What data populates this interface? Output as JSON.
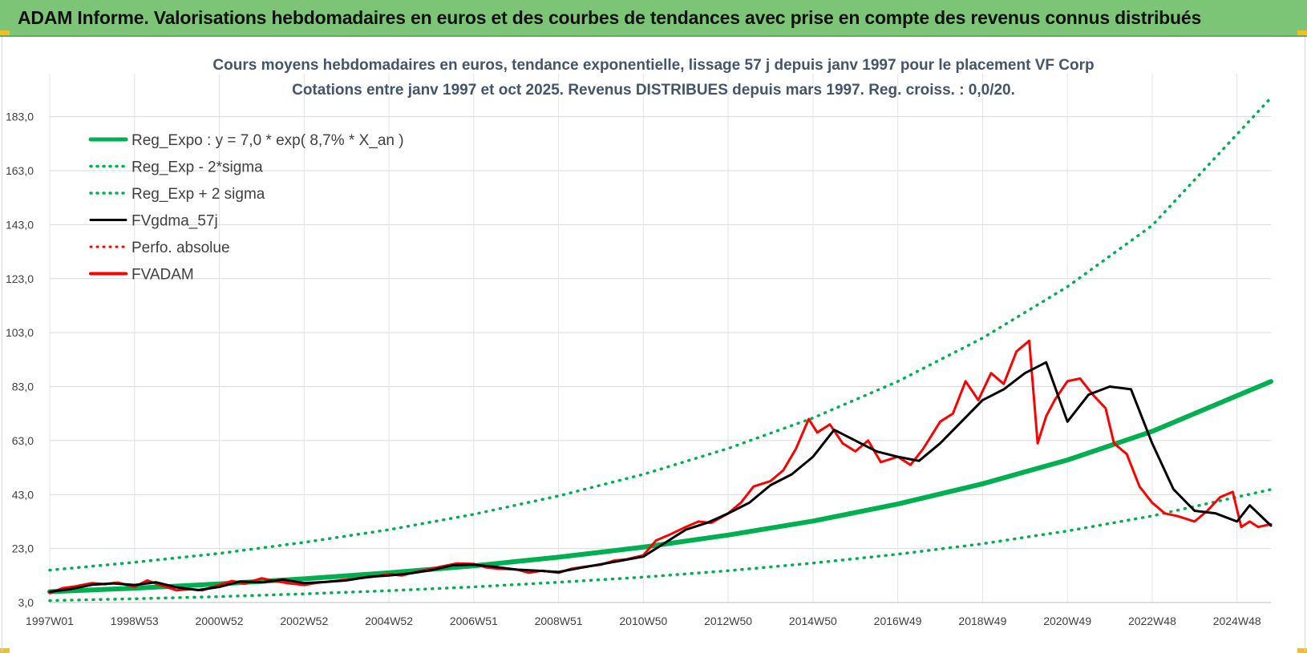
{
  "banner": {
    "title": "ADAM Informe. Valorisations hebdomadaires en euros et des courbes de tendances avec prise en compte des revenus connus distribués",
    "color": "#7cc576"
  },
  "chart_data": {
    "type": "line",
    "title": "Cours moyens hebdomadaires en euros, tendance exponentielle, lissage 57 j depuis janv 1997 pour le placement VF Corp",
    "subtitle": "Cotations entre janv 1997 et oct 2025. Revenus DISTRIBUES depuis mars 1997. Reg. croiss. : 0,0/20.",
    "xlabel": "",
    "ylabel": "",
    "xlim": [
      1997.0,
      2025.8
    ],
    "ylim": [
      3.0,
      193.0
    ],
    "y_ticks": [
      "3,0",
      "23,0",
      "43,0",
      "63,0",
      "83,0",
      "103,0",
      "123,0",
      "143,0",
      "163,0",
      "183,0"
    ],
    "x_ticks": [
      {
        "label": "1997W01",
        "x": 1997.0
      },
      {
        "label": "1998W53",
        "x": 1999.0
      },
      {
        "label": "2000W52",
        "x": 2001.0
      },
      {
        "label": "2002W52",
        "x": 2003.0
      },
      {
        "label": "2004W52",
        "x": 2005.0
      },
      {
        "label": "2006W51",
        "x": 2007.0
      },
      {
        "label": "2008W51",
        "x": 2009.0
      },
      {
        "label": "2010W50",
        "x": 2011.0
      },
      {
        "label": "2012W50",
        "x": 2013.0
      },
      {
        "label": "2014W50",
        "x": 2015.0
      },
      {
        "label": "2016W49",
        "x": 2017.0
      },
      {
        "label": "2018W49",
        "x": 2019.0
      },
      {
        "label": "2020W49",
        "x": 2021.0
      },
      {
        "label": "2022W48",
        "x": 2023.0
      },
      {
        "label": "2024W48",
        "x": 2025.0
      }
    ],
    "grid": true,
    "legend_position": "top-left",
    "series": [
      {
        "name": "Reg_Expo : y = 7,0 * exp( 8,7% * X_an )",
        "color": "#00b050",
        "style": "solid",
        "x": [
          1997,
          1999,
          2001,
          2003,
          2005,
          2007,
          2009,
          2011,
          2013,
          2015,
          2017,
          2019,
          2021,
          2023,
          2025.8
        ],
        "y": [
          7.0,
          8.3,
          9.9,
          11.8,
          14.0,
          16.6,
          19.8,
          23.5,
          28.0,
          33.2,
          39.5,
          47.0,
          55.8,
          66.4,
          84.9
        ]
      },
      {
        "name": "Reg_Exp - 2*sigma",
        "color": "#00b050",
        "style": "dotted",
        "x": [
          1997,
          1999,
          2001,
          2003,
          2005,
          2007,
          2009,
          2011,
          2013,
          2015,
          2017,
          2019,
          2021,
          2023,
          2025.8
        ],
        "y": [
          3.7,
          4.4,
          5.2,
          6.2,
          7.4,
          8.8,
          10.5,
          12.4,
          14.8,
          17.6,
          20.9,
          24.8,
          29.5,
          35.1,
          44.9
        ]
      },
      {
        "name": "Reg_Exp + 2 sigma",
        "color": "#00b050",
        "style": "dotted",
        "x": [
          1997,
          1999,
          2001,
          2003,
          2005,
          2007,
          2009,
          2011,
          2013,
          2015,
          2017,
          2019,
          2021,
          2023,
          2025.8
        ],
        "y": [
          15.0,
          17.9,
          21.2,
          25.3,
          30.0,
          35.7,
          42.5,
          50.5,
          60.1,
          71.4,
          84.9,
          101.0,
          120.0,
          142.7,
          190.0
        ]
      },
      {
        "name": "FVgdma_57j",
        "color": "#000000",
        "style": "solid",
        "x": [
          1997.0,
          1997.5,
          1998.0,
          1998.5,
          1999.0,
          1999.5,
          2000.0,
          2000.5,
          2001.0,
          2001.5,
          2002.0,
          2002.5,
          2003.0,
          2003.5,
          2004.0,
          2004.5,
          2005.0,
          2005.5,
          2006.0,
          2006.5,
          2007.0,
          2007.5,
          2008.0,
          2008.5,
          2009.0,
          2009.5,
          2010.0,
          2010.5,
          2011.0,
          2011.5,
          2012.0,
          2012.5,
          2013.0,
          2013.5,
          2014.0,
          2014.5,
          2015.0,
          2015.5,
          2016.0,
          2016.5,
          2017.0,
          2017.5,
          2018.0,
          2018.5,
          2019.0,
          2019.5,
          2020.0,
          2020.5,
          2021.0,
          2021.5,
          2022.0,
          2022.5,
          2023.0,
          2023.5,
          2024.0,
          2024.5,
          2025.0,
          2025.3,
          2025.8
        ],
        "y": [
          7.0,
          8.0,
          9.6,
          10.1,
          9.5,
          10.5,
          8.6,
          7.6,
          8.8,
          10.8,
          10.5,
          11.5,
          10.2,
          10.6,
          11.2,
          12.5,
          13.0,
          13.8,
          15.0,
          16.8,
          17.0,
          16.2,
          15.2,
          14.8,
          14.3,
          15.8,
          17.2,
          18.6,
          20.0,
          25.0,
          30.0,
          32.5,
          36.0,
          40.0,
          46.5,
          50.5,
          57.0,
          67.0,
          63.0,
          59.0,
          57.0,
          55.5,
          62.0,
          70.0,
          78.0,
          82.0,
          88.0,
          92.0,
          70.0,
          80.0,
          83.0,
          82.0,
          62.0,
          45.0,
          37.0,
          36.0,
          33.0,
          39.0,
          31.5
        ]
      },
      {
        "name": "Perfo. absolue",
        "color": "#ff0000",
        "style": "dotted",
        "x": [],
        "y": []
      },
      {
        "name": "FVADAM",
        "color": "#ff0000",
        "style": "solid",
        "x": [
          1997.0,
          1997.3,
          1997.6,
          1998.0,
          1998.3,
          1998.6,
          1999.0,
          1999.3,
          1999.6,
          2000.0,
          2000.3,
          2000.6,
          2001.0,
          2001.3,
          2001.6,
          2002.0,
          2002.3,
          2002.6,
          2003.0,
          2003.3,
          2003.6,
          2004.0,
          2004.3,
          2004.6,
          2005.0,
          2005.3,
          2005.6,
          2006.0,
          2006.3,
          2006.6,
          2007.0,
          2007.3,
          2007.6,
          2008.0,
          2008.3,
          2008.6,
          2009.0,
          2009.3,
          2009.6,
          2010.0,
          2010.3,
          2010.6,
          2011.0,
          2011.3,
          2011.6,
          2012.0,
          2012.3,
          2012.6,
          2013.0,
          2013.3,
          2013.6,
          2014.0,
          2014.3,
          2014.6,
          2014.9,
          2015.1,
          2015.4,
          2015.7,
          2016.0,
          2016.3,
          2016.6,
          2017.0,
          2017.3,
          2017.6,
          2018.0,
          2018.3,
          2018.6,
          2018.9,
          2019.2,
          2019.5,
          2019.8,
          2020.1,
          2020.3,
          2020.5,
          2020.7,
          2021.0,
          2021.3,
          2021.6,
          2021.9,
          2022.1,
          2022.4,
          2022.7,
          2023.0,
          2023.3,
          2023.6,
          2024.0,
          2024.3,
          2024.6,
          2024.9,
          2025.1,
          2025.3,
          2025.5,
          2025.8
        ],
        "y": [
          6.5,
          8.3,
          9.0,
          10.2,
          9.8,
          10.4,
          8.8,
          11.2,
          9.5,
          7.5,
          8.0,
          7.5,
          9.5,
          11.0,
          10.0,
          12.0,
          11.0,
          10.2,
          9.5,
          10.3,
          10.8,
          11.5,
          12.0,
          12.5,
          13.5,
          13.0,
          14.2,
          15.5,
          16.5,
          17.5,
          17.3,
          16.0,
          15.5,
          15.3,
          14.0,
          14.8,
          14.0,
          15.5,
          16.2,
          17.0,
          18.5,
          19.0,
          20.5,
          26.0,
          28.0,
          31.0,
          33.0,
          32.5,
          36.0,
          40.0,
          46.0,
          48.0,
          52.0,
          60.0,
          71.0,
          66.0,
          69.0,
          62.0,
          59.0,
          63.0,
          55.0,
          57.0,
          54.0,
          60.0,
          70.0,
          73.0,
          85.0,
          78.0,
          88.0,
          84.0,
          96.0,
          100.0,
          62.0,
          72.0,
          78.0,
          85.0,
          86.0,
          80.0,
          75.0,
          62.0,
          58.0,
          46.0,
          40.0,
          36.0,
          35.0,
          33.0,
          37.0,
          42.0,
          44.0,
          31.0,
          33.0,
          31.0,
          32.0
        ]
      }
    ]
  }
}
